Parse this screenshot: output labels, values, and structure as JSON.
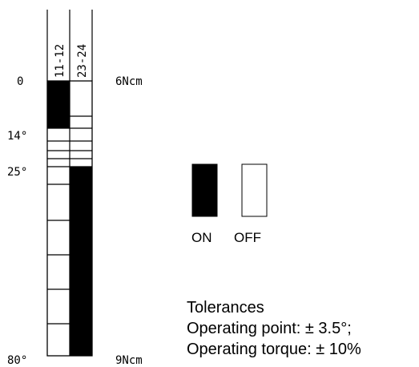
{
  "columns": [
    {
      "label": "11-12",
      "on_ranges": [
        [
          0,
          14
        ]
      ]
    },
    {
      "label": "23-24",
      "on_ranges": [
        [
          25,
          80
        ]
      ]
    }
  ],
  "angle_labels": [
    {
      "text": "0",
      "angle": 0
    },
    {
      "text": "14°",
      "angle": 14
    },
    {
      "text": "25°",
      "angle": 25
    },
    {
      "text": "80°",
      "angle": 80
    }
  ],
  "torque": {
    "start": "6Ncm",
    "end": "9Ncm"
  },
  "legend": {
    "on": "ON",
    "off": "OFF"
  },
  "tolerances": {
    "title": "Tolerances",
    "operating_point": "Operating point: ± 3.5°;",
    "operating_torque": "Operating torque: ± 10%"
  },
  "colors": {
    "on": "#000000",
    "off": "#ffffff",
    "line": "#000000"
  }
}
